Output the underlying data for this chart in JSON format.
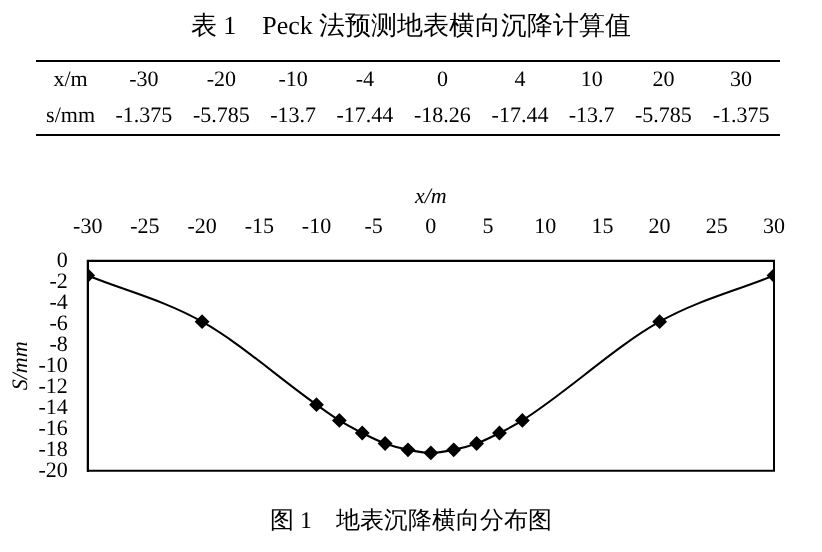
{
  "chart_data": [
    {
      "type": "other",
      "title": "表 1　Peck 法预测地表横向沉降计算值",
      "xlabel": "x/m",
      "ylabel": "s/mm",
      "categories": [
        "-30",
        "-20",
        "-10",
        "-4",
        "0",
        "4",
        "10",
        "20",
        "30"
      ],
      "values": [
        -1.375,
        -5.785,
        -13.7,
        -17.44,
        -18.26,
        -17.44,
        -13.7,
        -5.785,
        -1.375
      ],
      "data_labels": true
    },
    {
      "type": "line",
      "xlabel": "x/m",
      "ylabel": "S/mm",
      "annotations": [
        "图 1　地表沉降横向分布图"
      ],
      "x": [
        -30,
        -20,
        -10,
        -8,
        -6,
        -4,
        -2,
        0,
        2,
        4,
        6,
        8,
        20,
        30
      ],
      "series": [
        {
          "color": "#000000",
          "values": [
            -1.4,
            -5.8,
            -13.7,
            -15.2,
            -16.4,
            -17.4,
            -18.0,
            -18.3,
            -18.0,
            -17.4,
            -16.4,
            -15.2,
            -5.8,
            -1.4
          ]
        }
      ],
      "xlim": [
        -30,
        30
      ],
      "xticks": [
        -30,
        -25,
        -20,
        -15,
        -10,
        -5,
        0,
        5,
        10,
        15,
        20,
        25,
        30
      ],
      "ylim": [
        -20,
        0
      ],
      "yticks": [
        0,
        -2,
        -4,
        -6,
        -8,
        -10,
        -12,
        -14,
        -16,
        -18,
        -20
      ],
      "grid": false,
      "legend": false,
      "marker": "diamond",
      "line_style": "solid"
    }
  ]
}
